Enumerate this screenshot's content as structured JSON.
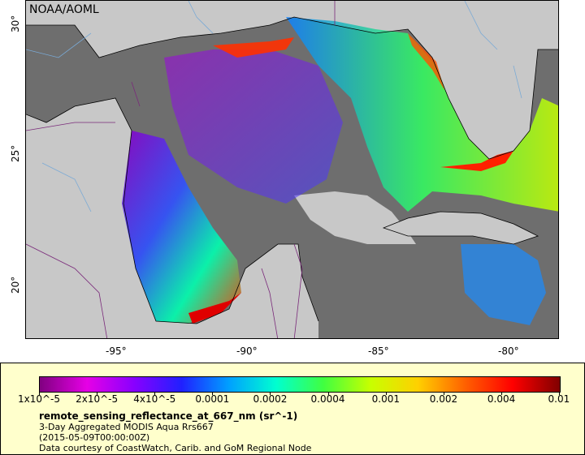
{
  "map": {
    "badge": "NOAA/AOML",
    "lat_labels": [
      "30°",
      "25°",
      "20°"
    ],
    "lon_labels": [
      "-95°",
      "-90°",
      "-85°",
      "-80°"
    ],
    "colors": {
      "land": "#c8c8c8",
      "no_data_ocean": "#6e6e6e",
      "coastline": "#000000",
      "rivers": "#7aaad6",
      "borders": "#7a2a7a"
    }
  },
  "legend": {
    "title": "remote_sensing_reflectance_at_667_nm (sr^-1)",
    "line1": "3-Day Aggregated MODIS Aqua Rrs667",
    "line2": "(2015-05-09T00:00:00Z)",
    "line3": "Data courtesy of CoastWatch, Carib. and GoM Regional Node",
    "ticks": [
      "1x10^-5",
      "2x10^-5",
      "4x10^-5",
      "0.0001",
      "0.0002",
      "0.0004",
      "0.001",
      "0.002",
      "0.004",
      "0.01"
    ],
    "gradient_colors": [
      "#800080",
      "#e600e6",
      "#8800ff",
      "#2020ff",
      "#00a0ff",
      "#00ffd0",
      "#40ff40",
      "#c8ff00",
      "#ffd000",
      "#ff6000",
      "#ff0000",
      "#800000"
    ]
  }
}
